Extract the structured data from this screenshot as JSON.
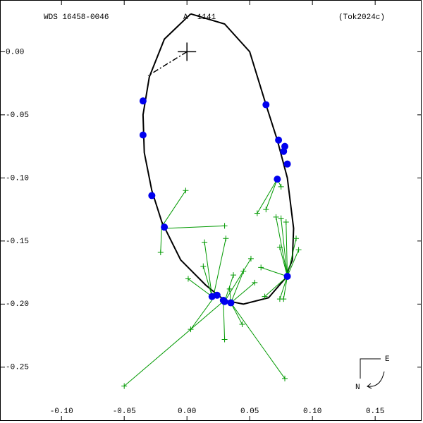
{
  "chart_data": {
    "type": "scatter",
    "annotations": [
      "WDS 16458-0046",
      "A  1141",
      "(Tok2024c)"
    ],
    "compass": {
      "east": "E",
      "north": "N"
    },
    "xlim": [
      -0.149,
      0.187
    ],
    "ylim": [
      -0.292,
      0.041
    ],
    "xticks": [
      {
        "value": -0.1,
        "label": "-0.10"
      },
      -0.05,
      {
        "value": 0,
        "label": "0.00"
      },
      0.05,
      {
        "value": 0.1,
        "label": "0.10"
      },
      0.15
    ],
    "yticks": [
      {
        "value": 0,
        "label": "0.00"
      },
      -0.05,
      {
        "value": -0.1,
        "label": "-0.10"
      },
      -0.15,
      {
        "value": -0.2,
        "label": "-0.20"
      },
      -0.25
    ],
    "orbit": {
      "color": "#000000",
      "x": [
        0.003,
        0.03,
        0.05,
        0.063,
        0.072,
        0.08,
        0.085,
        0.084,
        0.078,
        0.065,
        0.045,
        0.03,
        0.015,
        -0.005,
        -0.02,
        -0.028,
        -0.034,
        -0.035,
        -0.03,
        -0.018,
        0.003
      ],
      "y": [
        0.03,
        0.022,
        0.0,
        -0.042,
        -0.07,
        -0.1,
        -0.14,
        -0.165,
        -0.18,
        -0.195,
        -0.2,
        -0.197,
        -0.185,
        -0.165,
        -0.135,
        -0.11,
        -0.08,
        -0.05,
        -0.02,
        0.01,
        0.03
      ]
    },
    "node_line": {
      "x": [
        0,
        -0.031
      ],
      "y": [
        0,
        -0.019
      ]
    },
    "points": {
      "color": "#0000ee",
      "x": [
        -0.035,
        -0.035,
        -0.028,
        -0.018,
        0.063,
        0.073,
        0.078,
        0.077,
        0.08,
        0.072,
        0.08,
        0.02,
        0.024,
        0.029,
        0.03,
        0.035
      ],
      "y": [
        -0.039,
        -0.066,
        -0.114,
        -0.139,
        -0.042,
        -0.07,
        -0.075,
        -0.079,
        -0.089,
        -0.101,
        -0.178,
        -0.194,
        -0.193,
        -0.197,
        -0.198,
        -0.199
      ]
    },
    "measures": {
      "color": "#009900",
      "x": [
        -0.001,
        -0.021,
        0.03,
        -0.05,
        0.078,
        0.003,
        0.03,
        0.044,
        0.014,
        0.013,
        0.031,
        0.001,
        0.056,
        0.063,
        0.075,
        0.087,
        0.089,
        0.074,
        0.071,
        0.075,
        0.079,
        0.051,
        0.045,
        0.037,
        0.059,
        0.054,
        0.034,
        0.062,
        0.074,
        0.077
      ],
      "y": [
        -0.11,
        -0.159,
        -0.138,
        -0.265,
        -0.259,
        -0.22,
        -0.228,
        -0.216,
        -0.151,
        -0.17,
        -0.148,
        -0.18,
        -0.128,
        -0.125,
        -0.107,
        -0.148,
        -0.157,
        -0.155,
        -0.131,
        -0.132,
        -0.135,
        -0.164,
        -0.174,
        -0.177,
        -0.171,
        -0.183,
        -0.188,
        -0.194,
        -0.196,
        -0.196
      ],
      "to_x": [
        -0.019,
        -0.02,
        -0.018,
        0.03,
        0.035,
        0.022,
        0.029,
        0.035,
        0.02,
        0.02,
        0.021,
        0.02,
        0.072,
        0.072,
        0.072,
        0.08,
        0.08,
        0.08,
        0.08,
        0.08,
        0.08,
        0.03,
        0.035,
        0.03,
        0.08,
        0.035,
        0.035,
        0.08,
        0.08,
        0.08
      ],
      "to_y": [
        -0.137,
        -0.136,
        -0.14,
        -0.197,
        -0.199,
        -0.194,
        -0.197,
        -0.199,
        -0.194,
        -0.194,
        -0.194,
        -0.194,
        -0.101,
        -0.101,
        -0.101,
        -0.178,
        -0.178,
        -0.178,
        -0.178,
        -0.178,
        -0.178,
        -0.198,
        -0.199,
        -0.198,
        -0.178,
        -0.199,
        -0.199,
        -0.178,
        -0.178,
        -0.178
      ]
    }
  }
}
